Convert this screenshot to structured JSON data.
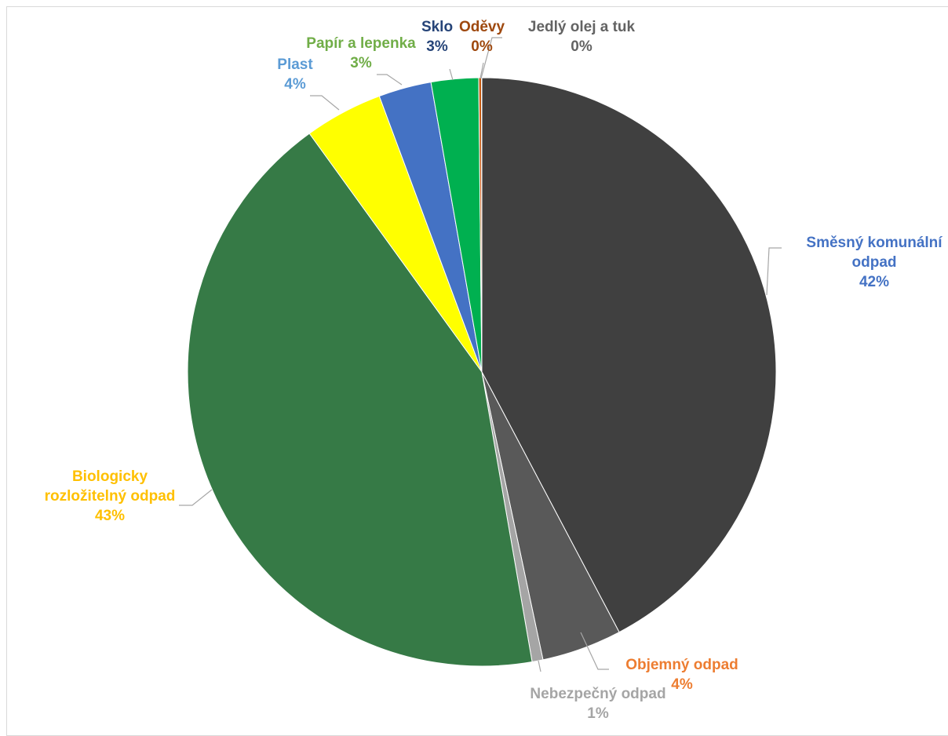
{
  "chart_data": {
    "type": "pie",
    "title": "",
    "slices": [
      {
        "name": "Směsný komunální odpad",
        "percent_label": "42%",
        "value": 42.3,
        "color": "#404040",
        "label_color": "#4472C4"
      },
      {
        "name": "Objemný odpad",
        "percent_label": "4%",
        "value": 4.4,
        "color": "#595959",
        "label_color": "#ED7D31"
      },
      {
        "name": "Nebezpečný odpad",
        "percent_label": "1%",
        "value": 0.6,
        "color": "#A5A5A5",
        "label_color": "#A5A5A5"
      },
      {
        "name": "Biologicky rozložitelný odpad",
        "percent_label": "43%",
        "value": 42.8,
        "color": "#367A46",
        "label_color": "#FFC000"
      },
      {
        "name": "Plast",
        "percent_label": "4%",
        "value": 4.3,
        "color": "#FFFF00",
        "label_color": "#5B9BD5"
      },
      {
        "name": "Papír a lepenka",
        "percent_label": "3%",
        "value": 2.9,
        "color": "#4472C4",
        "label_color": "#70AD47"
      },
      {
        "name": "Sklo",
        "percent_label": "3%",
        "value": 2.6,
        "color": "#00B050",
        "label_color": "#264478"
      },
      {
        "name": "Oděvy",
        "percent_label": "0%",
        "value": 0.15,
        "color": "#C55A11",
        "label_color": "#9E480E"
      },
      {
        "name": "Jedlý olej a tuk",
        "percent_label": "0%",
        "value": 0.02,
        "color": "#636363",
        "label_color": "#636363"
      }
    ],
    "legend": "none",
    "leader_line_color": "#A6A6A6"
  }
}
